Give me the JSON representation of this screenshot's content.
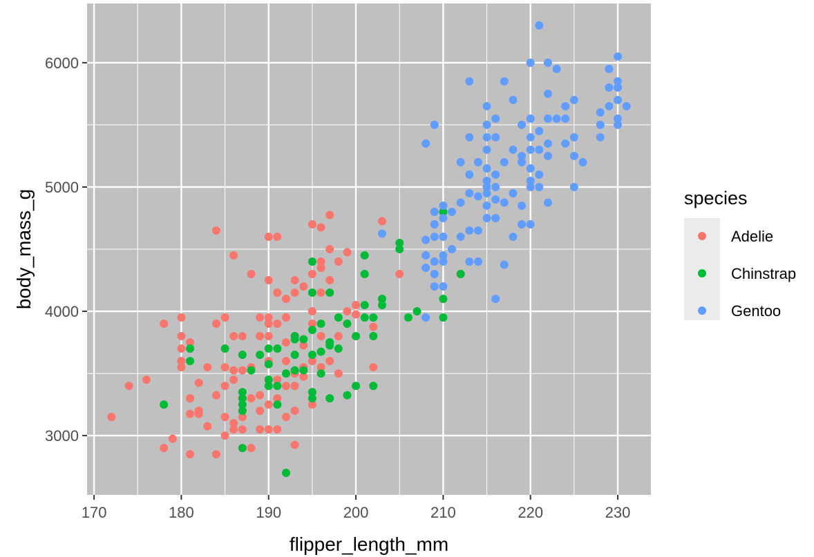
{
  "chart_data": {
    "type": "scatter",
    "xlabel": "flipper_length_mm",
    "ylabel": "body_mass_g",
    "xlim": [
      169.2,
      233.8
    ],
    "ylim": [
      2523,
      6477
    ],
    "x_ticks": [
      170,
      180,
      190,
      200,
      210,
      220,
      230
    ],
    "y_ticks": [
      3000,
      4000,
      5000,
      6000
    ],
    "grid": true,
    "panel_background": "#c0c0c0",
    "grid_color": "#ffffff",
    "legend": {
      "title": "species",
      "position": "right"
    },
    "series": [
      {
        "name": "Adelie",
        "color": "#f8766d",
        "points": [
          [
            172,
            3150
          ],
          [
            174,
            3400
          ],
          [
            176,
            3450
          ],
          [
            178,
            3900
          ],
          [
            178,
            2900
          ],
          [
            179,
            2975
          ],
          [
            180,
            3950
          ],
          [
            180,
            3800
          ],
          [
            180,
            3700
          ],
          [
            180,
            3600
          ],
          [
            180,
            3550
          ],
          [
            181,
            3750
          ],
          [
            181,
            3300
          ],
          [
            181,
            3175
          ],
          [
            181,
            2850
          ],
          [
            182,
            3425
          ],
          [
            182,
            3175
          ],
          [
            182,
            3200
          ],
          [
            183,
            3550
          ],
          [
            183,
            3075
          ],
          [
            184,
            4650
          ],
          [
            184,
            3900
          ],
          [
            184,
            3325
          ],
          [
            184,
            2850
          ],
          [
            185,
            3950
          ],
          [
            185,
            3700
          ],
          [
            185,
            3550
          ],
          [
            185,
            3400
          ],
          [
            185,
            3150
          ],
          [
            185,
            3000
          ],
          [
            186,
            4450
          ],
          [
            186,
            3800
          ],
          [
            186,
            3525
          ],
          [
            186,
            3450
          ],
          [
            186,
            3100
          ],
          [
            186,
            3050
          ],
          [
            187,
            3800
          ],
          [
            187,
            3525
          ],
          [
            187,
            3300
          ],
          [
            187,
            3150
          ],
          [
            187,
            3050
          ],
          [
            188,
            4300
          ],
          [
            188,
            3550
          ],
          [
            188,
            3300
          ],
          [
            188,
            2900
          ],
          [
            189,
            3950
          ],
          [
            189,
            3800
          ],
          [
            189,
            3325
          ],
          [
            189,
            3200
          ],
          [
            189,
            3050
          ],
          [
            190,
            4600
          ],
          [
            190,
            4250
          ],
          [
            190,
            3950
          ],
          [
            190,
            3900
          ],
          [
            190,
            3800
          ],
          [
            190,
            3600
          ],
          [
            190,
            3450
          ],
          [
            190,
            3250
          ],
          [
            190,
            3050
          ],
          [
            191,
            4600
          ],
          [
            191,
            4150
          ],
          [
            191,
            3900
          ],
          [
            191,
            3700
          ],
          [
            191,
            3450
          ],
          [
            191,
            3300
          ],
          [
            191,
            3050
          ],
          [
            192,
            4100
          ],
          [
            192,
            3950
          ],
          [
            192,
            3750
          ],
          [
            192,
            3600
          ],
          [
            192,
            3400
          ],
          [
            192,
            3150
          ],
          [
            193,
            4250
          ],
          [
            193,
            4150
          ],
          [
            193,
            3800
          ],
          [
            193,
            3500
          ],
          [
            193,
            3400
          ],
          [
            193,
            3200
          ],
          [
            193,
            2925
          ],
          [
            194,
            4200
          ],
          [
            194,
            3725
          ],
          [
            194,
            3550
          ],
          [
            194,
            3475
          ],
          [
            195,
            4700
          ],
          [
            195,
            4300
          ],
          [
            195,
            4000
          ],
          [
            195,
            3900
          ],
          [
            195,
            3600
          ],
          [
            195,
            3250
          ],
          [
            196,
            4675
          ],
          [
            196,
            4400
          ],
          [
            196,
            4350
          ],
          [
            196,
            4150
          ],
          [
            196,
            3800
          ],
          [
            196,
            3550
          ],
          [
            197,
            4775
          ],
          [
            197,
            4500
          ],
          [
            197,
            4250
          ],
          [
            197,
            3600
          ],
          [
            198,
            4400
          ],
          [
            198,
            3800
          ],
          [
            198,
            3500
          ],
          [
            199,
            4475
          ],
          [
            199,
            4000
          ],
          [
            200,
            4050
          ],
          [
            200,
            3975
          ],
          [
            202,
            3875
          ],
          [
            202,
            3550
          ],
          [
            203,
            4725
          ],
          [
            205,
            4300
          ]
        ]
      },
      {
        "name": "Chinstrap",
        "color": "#00ba38",
        "points": [
          [
            178,
            3250
          ],
          [
            181,
            3700
          ],
          [
            181,
            3600
          ],
          [
            185,
            3700
          ],
          [
            187,
            3650
          ],
          [
            187,
            3350
          ],
          [
            187,
            3300
          ],
          [
            187,
            3250
          ],
          [
            187,
            3200
          ],
          [
            187,
            2900
          ],
          [
            188,
            3525
          ],
          [
            189,
            3650
          ],
          [
            190,
            3700
          ],
          [
            190,
            3575
          ],
          [
            190,
            3450
          ],
          [
            190,
            3400
          ],
          [
            191,
            3700
          ],
          [
            191,
            3400
          ],
          [
            191,
            3250
          ],
          [
            192,
            3500
          ],
          [
            192,
            2700
          ],
          [
            193,
            3800
          ],
          [
            193,
            3775
          ],
          [
            193,
            3650
          ],
          [
            193,
            3525
          ],
          [
            194,
            3775
          ],
          [
            194,
            3525
          ],
          [
            195,
            4400
          ],
          [
            195,
            4150
          ],
          [
            195,
            3850
          ],
          [
            195,
            3650
          ],
          [
            195,
            3350
          ],
          [
            195,
            3300
          ],
          [
            196,
            3900
          ],
          [
            196,
            3675
          ],
          [
            196,
            3500
          ],
          [
            197,
            4150
          ],
          [
            197,
            3750
          ],
          [
            197,
            3725
          ],
          [
            197,
            3300
          ],
          [
            198,
            3950
          ],
          [
            198,
            3700
          ],
          [
            199,
            3900
          ],
          [
            199,
            3325
          ],
          [
            200,
            3800
          ],
          [
            200,
            3400
          ],
          [
            201,
            4450
          ],
          [
            201,
            4300
          ],
          [
            201,
            4050
          ],
          [
            201,
            3950
          ],
          [
            202,
            3950
          ],
          [
            202,
            3800
          ],
          [
            202,
            3400
          ],
          [
            203,
            4100
          ],
          [
            203,
            4050
          ],
          [
            205,
            4550
          ],
          [
            205,
            4500
          ],
          [
            206,
            3950
          ],
          [
            207,
            4000
          ],
          [
            210,
            4800
          ],
          [
            210,
            4100
          ],
          [
            210,
            3950
          ],
          [
            212,
            4300
          ]
        ]
      },
      {
        "name": "Gentoo",
        "color": "#619cff",
        "points": [
          [
            203,
            4625
          ],
          [
            208,
            5350
          ],
          [
            208,
            4575
          ],
          [
            208,
            4450
          ],
          [
            208,
            4350
          ],
          [
            208,
            3950
          ],
          [
            209,
            5500
          ],
          [
            209,
            4800
          ],
          [
            209,
            4700
          ],
          [
            209,
            4600
          ],
          [
            209,
            4400
          ],
          [
            209,
            4300
          ],
          [
            209,
            4200
          ],
          [
            210,
            4850
          ],
          [
            210,
            4750
          ],
          [
            210,
            4600
          ],
          [
            210,
            4450
          ],
          [
            210,
            4400
          ],
          [
            210,
            4200
          ],
          [
            211,
            4800
          ],
          [
            211,
            4500
          ],
          [
            212,
            5200
          ],
          [
            212,
            4875
          ],
          [
            212,
            4600
          ],
          [
            213,
            5850
          ],
          [
            213,
            5400
          ],
          [
            213,
            5100
          ],
          [
            213,
            4950
          ],
          [
            213,
            4650
          ],
          [
            213,
            4400
          ],
          [
            214,
            5200
          ],
          [
            214,
            4925
          ],
          [
            214,
            4650
          ],
          [
            214,
            4400
          ],
          [
            215,
            5650
          ],
          [
            215,
            5500
          ],
          [
            215,
            5400
          ],
          [
            215,
            5300
          ],
          [
            215,
            5150
          ],
          [
            215,
            5050
          ],
          [
            215,
            5000
          ],
          [
            215,
            4950
          ],
          [
            215,
            4850
          ],
          [
            215,
            4750
          ],
          [
            216,
            5550
          ],
          [
            216,
            5400
          ],
          [
            216,
            5100
          ],
          [
            216,
            5000
          ],
          [
            216,
            4900
          ],
          [
            216,
            4750
          ],
          [
            216,
            4100
          ],
          [
            217,
            5850
          ],
          [
            217,
            5200
          ],
          [
            217,
            4875
          ],
          [
            217,
            4375
          ],
          [
            218,
            5700
          ],
          [
            218,
            5300
          ],
          [
            218,
            4950
          ],
          [
            218,
            4600
          ],
          [
            219,
            5500
          ],
          [
            219,
            5250
          ],
          [
            219,
            5200
          ],
          [
            219,
            4850
          ],
          [
            219,
            4700
          ],
          [
            220,
            6000
          ],
          [
            220,
            5550
          ],
          [
            220,
            5400
          ],
          [
            220,
            5300
          ],
          [
            220,
            5150
          ],
          [
            220,
            5050
          ],
          [
            220,
            5000
          ],
          [
            220,
            4700
          ],
          [
            221,
            6300
          ],
          [
            221,
            5450
          ],
          [
            221,
            5300
          ],
          [
            221,
            5100
          ],
          [
            221,
            5000
          ],
          [
            222,
            6000
          ],
          [
            222,
            5750
          ],
          [
            222,
            5550
          ],
          [
            222,
            5350
          ],
          [
            222,
            5250
          ],
          [
            222,
            4875
          ],
          [
            223,
            5950
          ],
          [
            223,
            5550
          ],
          [
            224,
            5650
          ],
          [
            224,
            5550
          ],
          [
            224,
            5350
          ],
          [
            225,
            5700
          ],
          [
            225,
            5400
          ],
          [
            225,
            5250
          ],
          [
            225,
            5000
          ],
          [
            226,
            5200
          ],
          [
            228,
            5600
          ],
          [
            228,
            5500
          ],
          [
            228,
            5400
          ],
          [
            229,
            5950
          ],
          [
            229,
            5800
          ],
          [
            229,
            5650
          ],
          [
            230,
            6050
          ],
          [
            230,
            5850
          ],
          [
            230,
            5800
          ],
          [
            230,
            5700
          ],
          [
            230,
            5550
          ],
          [
            230,
            5500
          ],
          [
            231,
            5650
          ]
        ]
      }
    ]
  }
}
